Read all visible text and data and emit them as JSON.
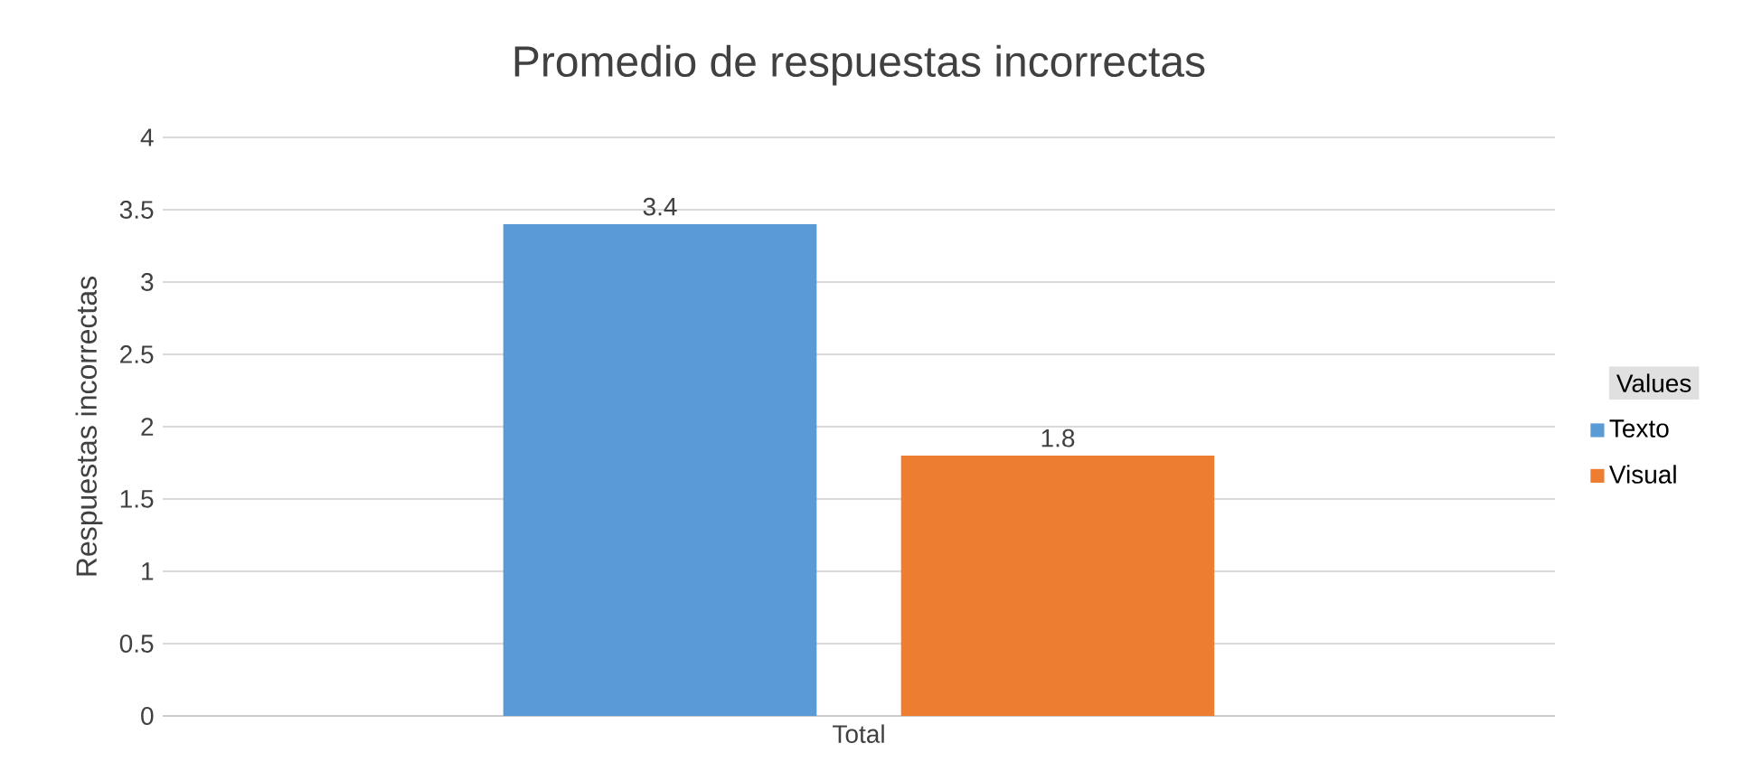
{
  "chart_data": {
    "type": "bar",
    "title": "Promedio de respuestas incorrectas",
    "ylabel": "Respuestas incorrectas",
    "legend_title": "Values",
    "categories": [
      "Total"
    ],
    "series": [
      {
        "name": "Texto",
        "color": "#5b9bd5",
        "values": [
          3.4
        ]
      },
      {
        "name": "Visual",
        "color": "#ed7d31",
        "values": [
          1.8
        ]
      }
    ],
    "ylim": [
      0,
      4
    ],
    "yticks": [
      0,
      0.5,
      1,
      1.5,
      2,
      2.5,
      3,
      3.5,
      4
    ],
    "grid": "y",
    "legend": "right",
    "data_labels": true
  }
}
